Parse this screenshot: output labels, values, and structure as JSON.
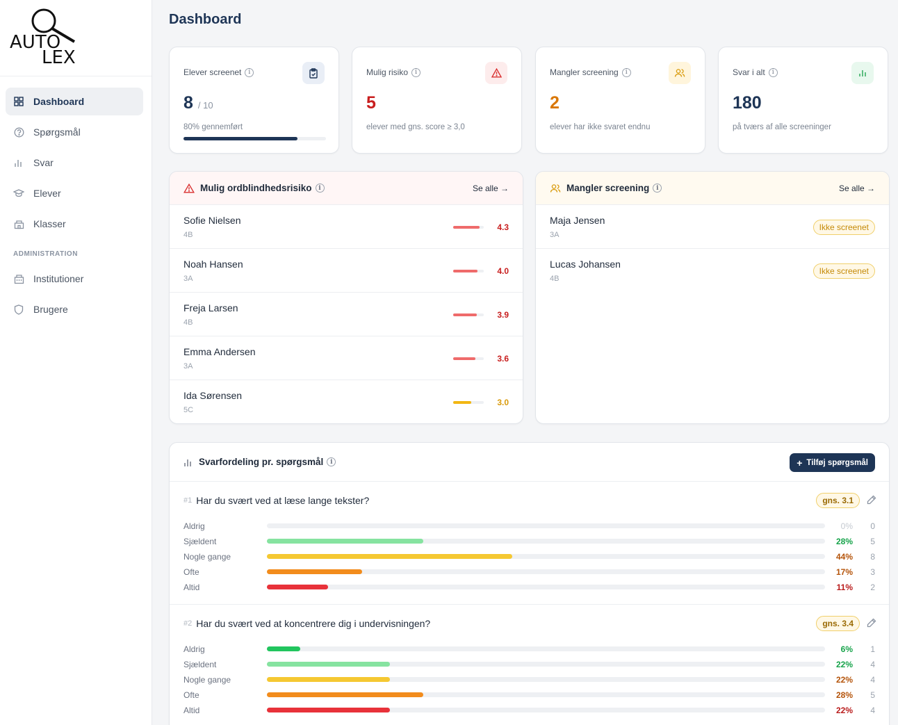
{
  "logo": {
    "line1": "AUTO",
    "line2": "LEX"
  },
  "sidebar": {
    "items": [
      {
        "label": "Dashboard",
        "icon": "grid-icon"
      },
      {
        "label": "Spørgsmål",
        "icon": "question-icon"
      },
      {
        "label": "Svar",
        "icon": "bar-chart-icon"
      },
      {
        "label": "Elever",
        "icon": "graduation-cap-icon"
      },
      {
        "label": "Klasser",
        "icon": "school-icon"
      }
    ],
    "section": "ADMINISTRATION",
    "admin_items": [
      {
        "label": "Institutioner",
        "icon": "building-icon"
      },
      {
        "label": "Brugere",
        "icon": "shield-icon"
      }
    ]
  },
  "page": {
    "title": "Dashboard"
  },
  "stats": [
    {
      "label": "Elever screenet",
      "value": "8",
      "suffix": "/ 10",
      "sub": "80% gennemført",
      "progress": 0.8,
      "color": "#1e3556"
    },
    {
      "label": "Mulig risiko",
      "value": "5",
      "sub": "elever med gns. score ≥ 3,0",
      "color": "#c81e1e"
    },
    {
      "label": "Mangler screening",
      "value": "2",
      "sub": "elever har ikke svaret endnu",
      "color": "#d97706"
    },
    {
      "label": "Svar i alt",
      "value": "180",
      "sub": "på tværs af alle screeninger",
      "color": "#1e3556"
    }
  ],
  "risk": {
    "title": "Mulig ordblindhedsrisiko",
    "see_all": "Se alle →",
    "rows": [
      {
        "name": "Sofie Nielsen",
        "cls": "4B",
        "score": "4.3",
        "level": 0.86
      },
      {
        "name": "Noah Hansen",
        "cls": "3A",
        "score": "4.0",
        "level": 0.8
      },
      {
        "name": "Freja Larsen",
        "cls": "4B",
        "score": "3.9",
        "level": 0.78
      },
      {
        "name": "Emma Andersen",
        "cls": "3A",
        "score": "3.6",
        "level": 0.72
      },
      {
        "name": "Ida Sørensen",
        "cls": "5C",
        "score": "3.0",
        "level": 0.6
      }
    ]
  },
  "missing": {
    "title": "Mangler screening",
    "see_all": "Se alle →",
    "rows": [
      {
        "name": "Maja Jensen",
        "cls": "3A",
        "badge": "Ikke screenet"
      },
      {
        "name": "Lucas Johansen",
        "cls": "4B",
        "badge": "Ikke screenet"
      }
    ]
  },
  "distribution": {
    "title": "Svarfordeling pr. spørgsmål",
    "add_button": "Tilføj spørgsmål",
    "questions": [
      {
        "num": "#1",
        "text": "Har du svært ved at læse lange tekster?",
        "avg": "gns. 3.1",
        "options": [
          {
            "label": "Aldrig",
            "pct": "0%",
            "count": "0",
            "fraction": 0.0
          },
          {
            "label": "Sjældent",
            "pct": "28%",
            "count": "5",
            "fraction": 0.28
          },
          {
            "label": "Nogle gange",
            "pct": "44%",
            "count": "8",
            "fraction": 0.44
          },
          {
            "label": "Ofte",
            "pct": "17%",
            "count": "3",
            "fraction": 0.17
          },
          {
            "label": "Altid",
            "pct": "11%",
            "count": "2",
            "fraction": 0.11
          }
        ]
      },
      {
        "num": "#2",
        "text": "Har du svært ved at koncentrere dig i undervisningen?",
        "avg": "gns. 3.4",
        "options": [
          {
            "label": "Aldrig",
            "pct": "6%",
            "count": "1",
            "fraction": 0.06
          },
          {
            "label": "Sjældent",
            "pct": "22%",
            "count": "4",
            "fraction": 0.22
          },
          {
            "label": "Nogle gange",
            "pct": "22%",
            "count": "4",
            "fraction": 0.22
          },
          {
            "label": "Ofte",
            "pct": "28%",
            "count": "5",
            "fraction": 0.28
          },
          {
            "label": "Altid",
            "pct": "22%",
            "count": "4",
            "fraction": 0.22
          }
        ]
      }
    ]
  },
  "colors": {
    "aldrig": "#22c55e",
    "sjaeldent": "#86e3a0",
    "nogle": "#f5c832",
    "ofte": "#f28c1c",
    "altid": "#e8323a",
    "risk_high": "#ef6b6b",
    "risk_mid": "#f2b713"
  }
}
